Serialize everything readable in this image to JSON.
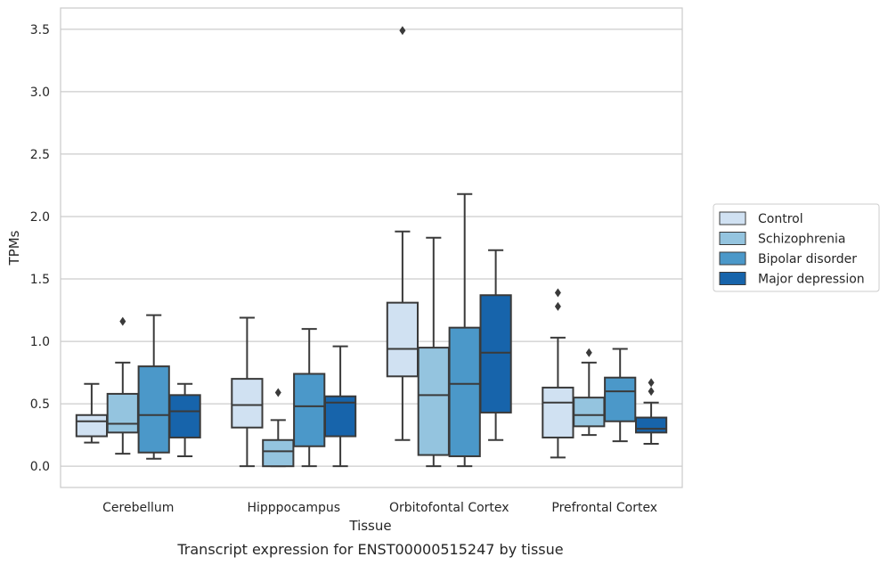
{
  "chart_data": {
    "type": "box",
    "caption": "Transcript expression for ENST00000515247 by tissue",
    "xlabel": "Tissue",
    "ylabel": "TPMs",
    "ylim": [
      -0.17,
      3.67
    ],
    "yticks": [
      "0.0",
      "0.5",
      "1.0",
      "1.5",
      "2.0",
      "2.5",
      "3.0",
      "3.5"
    ],
    "grid": "horizontal",
    "legend_position": "right",
    "categories": [
      "Cerebellum",
      "Hipppocampus",
      "Orbitofontal Cortex",
      "Prefrontal Cortex"
    ],
    "series": [
      {
        "name": "Control",
        "color": "#d0e1f2",
        "boxes": [
          {
            "whislo": 0.19,
            "q1": 0.24,
            "med": 0.36,
            "q3": 0.41,
            "whishi": 0.66,
            "fliers": []
          },
          {
            "whislo": 0.0,
            "q1": 0.31,
            "med": 0.49,
            "q3": 0.7,
            "whishi": 1.19,
            "fliers": []
          },
          {
            "whislo": 0.21,
            "q1": 0.72,
            "med": 0.94,
            "q3": 1.31,
            "whishi": 1.88,
            "fliers": [
              3.49
            ]
          },
          {
            "whislo": 0.07,
            "q1": 0.23,
            "med": 0.51,
            "q3": 0.63,
            "whishi": 1.03,
            "fliers": [
              1.28,
              1.39
            ]
          }
        ]
      },
      {
        "name": "Schizophrenia",
        "color": "#94c4df",
        "boxes": [
          {
            "whislo": 0.1,
            "q1": 0.27,
            "med": 0.34,
            "q3": 0.58,
            "whishi": 0.83,
            "fliers": [
              1.16
            ]
          },
          {
            "whislo": 0.0,
            "q1": 0.0,
            "med": 0.12,
            "q3": 0.21,
            "whishi": 0.37,
            "fliers": [
              0.59
            ]
          },
          {
            "whislo": 0.0,
            "q1": 0.09,
            "med": 0.57,
            "q3": 0.95,
            "whishi": 1.83,
            "fliers": []
          },
          {
            "whislo": 0.25,
            "q1": 0.32,
            "med": 0.41,
            "q3": 0.55,
            "whishi": 0.83,
            "fliers": [
              0.91
            ]
          }
        ]
      },
      {
        "name": "Bipolar disorder",
        "color": "#4b98c9",
        "boxes": [
          {
            "whislo": 0.06,
            "q1": 0.11,
            "med": 0.41,
            "q3": 0.8,
            "whishi": 1.21,
            "fliers": []
          },
          {
            "whislo": 0.0,
            "q1": 0.16,
            "med": 0.48,
            "q3": 0.74,
            "whishi": 1.1,
            "fliers": []
          },
          {
            "whislo": 0.0,
            "q1": 0.08,
            "med": 0.66,
            "q3": 1.11,
            "whishi": 2.18,
            "fliers": []
          },
          {
            "whislo": 0.2,
            "q1": 0.36,
            "med": 0.6,
            "q3": 0.71,
            "whishi": 0.94,
            "fliers": []
          }
        ]
      },
      {
        "name": "Major depression",
        "color": "#1764ab",
        "boxes": [
          {
            "whislo": 0.08,
            "q1": 0.23,
            "med": 0.44,
            "q3": 0.57,
            "whishi": 0.66,
            "fliers": []
          },
          {
            "whislo": 0.0,
            "q1": 0.24,
            "med": 0.51,
            "q3": 0.56,
            "whishi": 0.96,
            "fliers": []
          },
          {
            "whislo": 0.21,
            "q1": 0.43,
            "med": 0.91,
            "q3": 1.37,
            "whishi": 1.73,
            "fliers": []
          },
          {
            "whislo": 0.18,
            "q1": 0.27,
            "med": 0.3,
            "q3": 0.39,
            "whishi": 0.51,
            "fliers": [
              0.6,
              0.67
            ]
          }
        ]
      }
    ]
  }
}
